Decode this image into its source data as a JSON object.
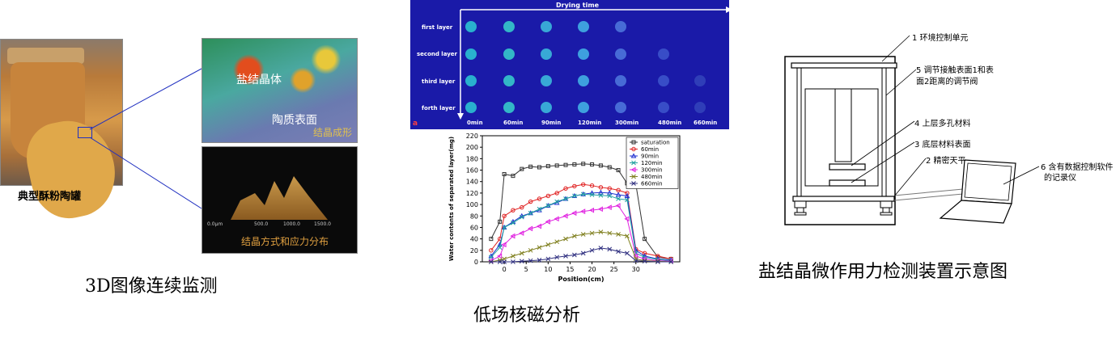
{
  "left_panel": {
    "jar_caption": "典型酥粉陶罐",
    "surface_top": {
      "label_crystal": "盐结晶体",
      "label_surface": "陶质表面",
      "label_corner": "结晶成形"
    },
    "surface_bottom": {
      "label_corner": "结晶方式和应力分布",
      "axis_ticks": [
        "0.0μm",
        "500.0",
        "1000.0",
        "1500.0"
      ]
    },
    "caption": "3D图像连续监测"
  },
  "middle_panel": {
    "nmr": {
      "axis_title": "Drying time",
      "rows": [
        "first layer",
        "second layer",
        "third layer",
        "forth layer"
      ],
      "times": [
        "0min",
        "60min",
        "90min",
        "120min",
        "300min",
        "480min",
        "660min"
      ],
      "panel_letter": "a"
    },
    "caption": "低场核磁分析"
  },
  "chart_data": {
    "type": "line",
    "xlabel": "Position(cm)",
    "ylabel": "Water contents of separated layer(mg)",
    "ylim": [
      0,
      220
    ],
    "xlim": [
      -5,
      40
    ],
    "x_ticks": [
      0,
      5,
      10,
      15,
      20,
      25,
      30
    ],
    "y_ticks": [
      0,
      20,
      40,
      60,
      80,
      100,
      120,
      140,
      160,
      180,
      200,
      220
    ],
    "x": [
      -3,
      -1,
      0,
      2,
      4,
      6,
      8,
      10,
      12,
      14,
      16,
      18,
      20,
      22,
      24,
      26,
      28,
      30,
      32,
      35,
      38
    ],
    "series": [
      {
        "name": "saturation",
        "color": "#333333",
        "marker": "square",
        "values": [
          40,
          70,
          153,
          150,
          162,
          166,
          165,
          167,
          168,
          169,
          170,
          171,
          170,
          168,
          165,
          160,
          137,
          135,
          40,
          8,
          5
        ]
      },
      {
        "name": "60min",
        "color": "#e02020",
        "marker": "circle",
        "values": [
          20,
          40,
          80,
          90,
          95,
          105,
          110,
          115,
          120,
          128,
          132,
          135,
          133,
          130,
          128,
          125,
          120,
          22,
          15,
          10,
          5
        ]
      },
      {
        "name": "90min",
        "color": "#2030d0",
        "marker": "triangle",
        "values": [
          10,
          30,
          60,
          70,
          80,
          85,
          90,
          98,
          103,
          110,
          115,
          118,
          120,
          121,
          120,
          117,
          115,
          20,
          10,
          5,
          3
        ]
      },
      {
        "name": "120min",
        "color": "#20a0a0",
        "marker": "x",
        "values": [
          8,
          25,
          60,
          68,
          78,
          85,
          92,
          98,
          105,
          110,
          115,
          118,
          117,
          116,
          115,
          110,
          108,
          15,
          8,
          4,
          2
        ]
      },
      {
        "name": "300min",
        "color": "#e020e0",
        "marker": "triangle-left",
        "values": [
          2,
          10,
          30,
          45,
          50,
          58,
          62,
          70,
          75,
          80,
          85,
          88,
          90,
          92,
          95,
          98,
          75,
          10,
          5,
          2,
          1
        ]
      },
      {
        "name": "480min",
        "color": "#808020",
        "marker": "star",
        "values": [
          0,
          3,
          5,
          10,
          15,
          20,
          25,
          30,
          35,
          40,
          45,
          48,
          50,
          52,
          50,
          48,
          45,
          5,
          2,
          1,
          0
        ]
      },
      {
        "name": "660min",
        "color": "#303080",
        "marker": "star",
        "values": [
          0,
          0,
          0,
          0,
          1,
          2,
          3,
          5,
          8,
          10,
          12,
          15,
          20,
          24,
          22,
          18,
          15,
          2,
          1,
          0,
          0
        ]
      }
    ]
  },
  "right_panel": {
    "labels": {
      "env": "1 环境控制单元",
      "adjust_line1": "5  调节接触表面1和表",
      "adjust_line2": "面2距离的调节阀",
      "upper": "4 上层多孔材料",
      "lower": "3 底层材料表面",
      "balance": "2 精密天平",
      "recorder_line1": "6  含有数据控制软件",
      "recorder_line2": "的记录仪"
    },
    "caption": "盐结晶微作用力检测装置示意图"
  }
}
